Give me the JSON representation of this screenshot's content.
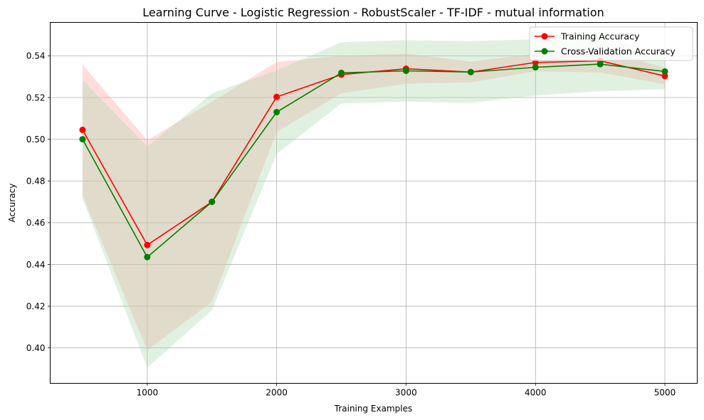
{
  "chart_data": {
    "type": "line",
    "title": "Learning Curve - Logistic Regression - RobustScaler - TF-IDF - mutual information",
    "xlabel": "Training Examples",
    "ylabel": "Accuracy",
    "xlim": [
      250,
      5250
    ],
    "ylim": [
      0.383,
      0.556
    ],
    "xticks": [
      1000,
      2000,
      3000,
      4000,
      5000
    ],
    "xtick_labels": [
      "1000",
      "2000",
      "3000",
      "4000",
      "5000"
    ],
    "yticks": [
      0.4,
      0.42,
      0.44,
      0.46,
      0.48,
      0.5,
      0.52,
      0.54
    ],
    "ytick_labels": [
      "0.40",
      "0.42",
      "0.44",
      "0.46",
      "0.48",
      "0.50",
      "0.52",
      "0.54"
    ],
    "grid": true,
    "legend_position": "top-right",
    "x": [
      500,
      1000,
      1500,
      2000,
      2500,
      3000,
      3500,
      4000,
      4500,
      5000
    ],
    "series": [
      {
        "name": "Training Accuracy",
        "color": "#ff0000",
        "band_color": "#ffb3b3",
        "values": [
          0.5045,
          0.4493,
          0.47,
          0.5203,
          0.531,
          0.5338,
          0.5322,
          0.5368,
          0.5376,
          0.5303
        ],
        "upper": [
          0.5358,
          0.4995,
          0.518,
          0.537,
          0.54,
          0.541,
          0.5372,
          0.541,
          0.5432,
          0.5342
        ],
        "lower": [
          0.473,
          0.399,
          0.422,
          0.5036,
          0.522,
          0.5266,
          0.5272,
          0.5326,
          0.532,
          0.5264
        ]
      },
      {
        "name": "Cross-Validation Accuracy",
        "color": "#008000",
        "band_color": "#a8d8a8",
        "values": [
          0.5,
          0.4435,
          0.47,
          0.513,
          0.5318,
          0.5328,
          0.5322,
          0.5345,
          0.536,
          0.5325
        ],
        "upper": [
          0.5285,
          0.4965,
          0.522,
          0.533,
          0.5465,
          0.5475,
          0.547,
          0.548,
          0.549,
          0.541
        ],
        "lower": [
          0.4715,
          0.3905,
          0.418,
          0.493,
          0.5171,
          0.5181,
          0.5174,
          0.521,
          0.523,
          0.524
        ]
      }
    ]
  }
}
